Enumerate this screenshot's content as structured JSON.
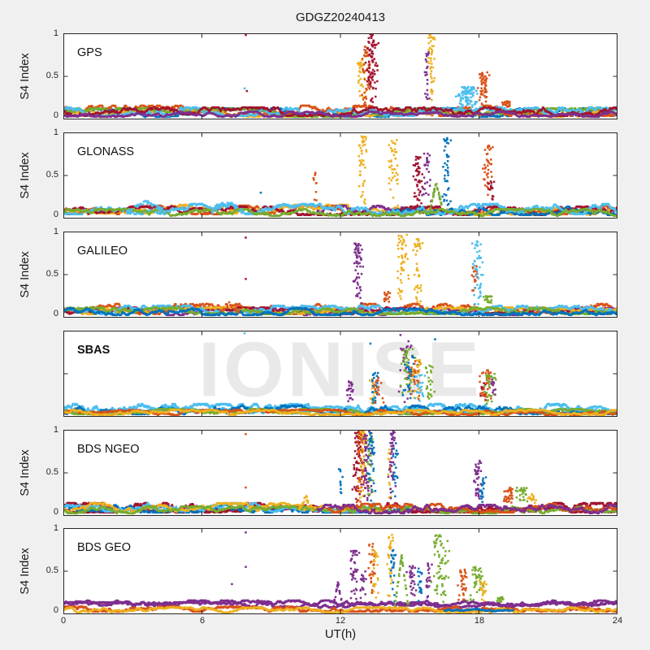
{
  "chart_data": {
    "type": "scatter",
    "title": "GDGZ20240413",
    "xlabel": "UT(h)",
    "ylabel": "S4 Index",
    "watermark": "IONISE",
    "xlim": [
      0,
      24
    ],
    "ylim": [
      0,
      1
    ],
    "xticks": [
      0,
      6,
      12,
      18,
      24
    ],
    "yticks": [
      0,
      0.5,
      1
    ],
    "grid": false,
    "marker": "square",
    "axis_color": "#262626",
    "panel_bg": "#ffffff",
    "figure_bg": "#f0f0f0",
    "palette": {
      "blue": "#0072BD",
      "orange": "#D95319",
      "yellow": "#EDB120",
      "purple": "#7E2F8E",
      "green": "#77AC30",
      "lightblue": "#4DBEEE",
      "darkred": "#A2142F"
    },
    "panels": [
      {
        "label": "GPS",
        "baseline": [
          {
            "c": "blue",
            "level": 0.08,
            "spread": 0.05
          },
          {
            "c": "orange",
            "level": 0.1,
            "spread": 0.06
          },
          {
            "c": "yellow",
            "level": 0.07,
            "spread": 0.04
          },
          {
            "c": "green",
            "level": 0.08,
            "spread": 0.05
          },
          {
            "c": "lightblue",
            "level": 0.09,
            "spread": 0.05
          },
          {
            "c": "darkred",
            "level": 0.09,
            "spread": 0.05
          },
          {
            "c": "purple",
            "level": 0.06,
            "spread": 0.03
          }
        ],
        "events": [
          {
            "t": 12.9,
            "w": 0.25,
            "peak": 0.72,
            "c": "yellow",
            "n": 30
          },
          {
            "t": 13.1,
            "w": 0.3,
            "peak": 0.9,
            "c": "orange",
            "n": 45
          },
          {
            "t": 13.35,
            "w": 0.35,
            "peak": 1.0,
            "c": "darkred",
            "n": 85
          },
          {
            "t": 15.75,
            "w": 0.18,
            "peak": 0.78,
            "c": "purple",
            "n": 22
          },
          {
            "t": 15.95,
            "w": 0.22,
            "peak": 1.0,
            "c": "yellow",
            "n": 45
          },
          {
            "t": 17.5,
            "w": 0.6,
            "peak": 0.38,
            "c": "lightblue",
            "n": 90
          },
          {
            "t": 18.15,
            "w": 0.35,
            "peak": 0.55,
            "c": "orange",
            "n": 55
          },
          {
            "t": 19.2,
            "w": 0.3,
            "peak": 0.22,
            "c": "orange",
            "n": 20
          }
        ],
        "outliers": [
          {
            "t": 7.9,
            "s4": 0.98,
            "c": "darkred"
          },
          {
            "t": 7.85,
            "s4": 0.36,
            "c": "lightblue"
          },
          {
            "t": 7.95,
            "s4": 0.33,
            "c": "darkred"
          }
        ]
      },
      {
        "label": "GLONASS",
        "baseline": [
          {
            "c": "orange",
            "level": 0.1,
            "spread": 0.05
          },
          {
            "c": "yellow",
            "level": 0.11,
            "spread": 0.05,
            "range": [
              0,
              13
            ]
          },
          {
            "c": "yellow",
            "level": 0.08,
            "spread": 0.04,
            "range": [
              13,
              24
            ]
          },
          {
            "c": "purple",
            "level": 0.1,
            "spread": 0.05,
            "range": [
              11,
              17
            ]
          },
          {
            "c": "darkred",
            "level": 0.09,
            "spread": 0.05
          },
          {
            "c": "blue",
            "level": 0.09,
            "spread": 0.05,
            "range": [
              14,
              24
            ]
          },
          {
            "c": "lightblue",
            "level": 0.11,
            "spread": 0.06
          },
          {
            "c": "green",
            "level": 0.07,
            "spread": 0.04
          }
        ],
        "events": [
          {
            "t": 3.6,
            "w": 0.9,
            "peak": 0.2,
            "c": "lightblue",
            "n": 50,
            "shape": "arc"
          },
          {
            "t": 7.1,
            "w": 0.7,
            "peak": 0.2,
            "c": "lightblue",
            "n": 35,
            "shape": "arc"
          },
          {
            "t": 10.9,
            "w": 0.12,
            "peak": 0.55,
            "c": "orange",
            "n": 10
          },
          {
            "t": 12.95,
            "w": 0.3,
            "peak": 0.97,
            "c": "yellow",
            "n": 45
          },
          {
            "t": 14.3,
            "w": 0.3,
            "peak": 0.93,
            "c": "yellow",
            "n": 40
          },
          {
            "t": 15.35,
            "w": 0.3,
            "peak": 0.72,
            "c": "darkred",
            "n": 45
          },
          {
            "t": 15.75,
            "w": 0.25,
            "peak": 0.78,
            "c": "purple",
            "n": 28
          },
          {
            "t": 16.15,
            "w": 0.3,
            "peak": 0.42,
            "c": "green",
            "n": 40,
            "shape": "arc"
          },
          {
            "t": 16.6,
            "w": 0.22,
            "peak": 0.95,
            "c": "blue",
            "n": 40
          },
          {
            "t": 18.35,
            "w": 0.3,
            "peak": 0.85,
            "c": "orange",
            "n": 40
          },
          {
            "t": 18.55,
            "w": 0.2,
            "peak": 0.45,
            "c": "darkred",
            "n": 15
          }
        ],
        "outliers": [
          {
            "t": 8.55,
            "s4": 0.3,
            "c": "blue"
          }
        ]
      },
      {
        "label": "GALILEO",
        "baseline": [
          {
            "c": "orange",
            "level": 0.1,
            "spread": 0.06
          },
          {
            "c": "purple",
            "level": 0.07,
            "spread": 0.04
          },
          {
            "c": "darkred",
            "level": 0.08,
            "spread": 0.04
          },
          {
            "c": "yellow",
            "level": 0.08,
            "spread": 0.04
          },
          {
            "c": "lightblue",
            "level": 0.09,
            "spread": 0.05
          },
          {
            "c": "green",
            "level": 0.08,
            "spread": 0.04
          },
          {
            "c": "blue",
            "level": 0.07,
            "spread": 0.04
          }
        ],
        "events": [
          {
            "t": 7.2,
            "w": 0.4,
            "peak": 0.17,
            "c": "orange",
            "n": 25,
            "shape": "arc"
          },
          {
            "t": 12.75,
            "w": 0.28,
            "peak": 0.88,
            "c": "purple",
            "n": 60
          },
          {
            "t": 14.0,
            "w": 0.2,
            "peak": 0.3,
            "c": "orange",
            "n": 15
          },
          {
            "t": 14.7,
            "w": 0.3,
            "peak": 0.97,
            "c": "yellow",
            "n": 50
          },
          {
            "t": 15.35,
            "w": 0.3,
            "peak": 0.92,
            "c": "yellow",
            "n": 40
          },
          {
            "t": 17.8,
            "w": 0.2,
            "peak": 0.6,
            "c": "orange",
            "n": 18
          },
          {
            "t": 17.95,
            "w": 0.28,
            "peak": 0.9,
            "c": "lightblue",
            "n": 45
          },
          {
            "t": 18.4,
            "w": 0.3,
            "peak": 0.25,
            "c": "green",
            "n": 22
          }
        ],
        "outliers": [
          {
            "t": 7.9,
            "s4": 0.93,
            "c": "darkred"
          },
          {
            "t": 7.9,
            "s4": 0.45,
            "c": "darkred"
          }
        ]
      },
      {
        "label": "SBAS",
        "baseline": [
          {
            "c": "lightblue",
            "level": 0.1,
            "spread": 0.05,
            "step": 0.02
          },
          {
            "c": "lightblue",
            "level": 0.08,
            "spread": 0.04
          },
          {
            "c": "blue",
            "level": 0.08,
            "spread": 0.05
          },
          {
            "c": "green",
            "level": 0.06,
            "spread": 0.03
          },
          {
            "c": "orange",
            "level": 0.05,
            "spread": 0.03
          },
          {
            "c": "yellow",
            "level": 0.05,
            "spread": 0.03
          }
        ],
        "events": [
          {
            "t": 12.4,
            "w": 0.25,
            "peak": 0.42,
            "c": "purple",
            "n": 22
          },
          {
            "t": 13.4,
            "w": 0.3,
            "peak": 0.45,
            "c": "yellow",
            "n": 15
          },
          {
            "t": 13.5,
            "w": 0.35,
            "peak": 0.52,
            "c": "blue",
            "n": 25
          },
          {
            "t": 13.6,
            "w": 0.3,
            "peak": 0.48,
            "c": "orange",
            "n": 18
          },
          {
            "t": 14.8,
            "w": 0.4,
            "peak": 0.88,
            "c": "purple",
            "n": 30
          },
          {
            "t": 14.9,
            "w": 0.45,
            "peak": 0.8,
            "c": "green",
            "n": 40
          },
          {
            "t": 15.0,
            "w": 0.4,
            "peak": 0.72,
            "c": "blue",
            "n": 30
          },
          {
            "t": 15.2,
            "w": 0.35,
            "peak": 0.65,
            "c": "orange",
            "n": 25
          },
          {
            "t": 15.3,
            "w": 0.35,
            "peak": 0.68,
            "c": "yellow",
            "n": 25
          },
          {
            "t": 15.5,
            "w": 0.3,
            "peak": 0.5,
            "c": "lightblue",
            "n": 20
          },
          {
            "t": 15.9,
            "w": 0.3,
            "peak": 0.6,
            "c": "green",
            "n": 25
          },
          {
            "t": 18.2,
            "w": 0.25,
            "peak": 0.4,
            "c": "darkred",
            "n": 12
          },
          {
            "t": 18.3,
            "w": 0.4,
            "peak": 0.55,
            "c": "orange",
            "n": 35
          },
          {
            "t": 18.45,
            "w": 0.35,
            "peak": 0.5,
            "c": "green",
            "n": 28
          },
          {
            "t": 18.6,
            "w": 0.2,
            "peak": 0.45,
            "c": "purple",
            "n": 10
          }
        ],
        "outliers": [
          {
            "t": 7.85,
            "s4": 0.97,
            "c": "lightblue"
          },
          {
            "t": 13.3,
            "s4": 0.85,
            "c": "blue"
          },
          {
            "t": 14.6,
            "s4": 0.95,
            "c": "purple"
          },
          {
            "t": 16.1,
            "s4": 0.9,
            "c": "blue"
          }
        ]
      },
      {
        "label": "BDS NGEO",
        "baseline": [
          {
            "c": "darkred",
            "level": 0.1,
            "spread": 0.05,
            "step": 0.02
          },
          {
            "c": "darkred",
            "level": 0.08,
            "spread": 0.04
          },
          {
            "c": "blue",
            "level": 0.09,
            "spread": 0.05,
            "range": [
              0,
              15
            ]
          },
          {
            "c": "lightblue",
            "level": 0.1,
            "spread": 0.05,
            "range": [
              0,
              13.5
            ]
          },
          {
            "c": "yellow",
            "level": 0.1,
            "spread": 0.05,
            "range": [
              0,
              14
            ]
          },
          {
            "c": "green",
            "level": 0.07,
            "spread": 0.04
          },
          {
            "c": "orange",
            "level": 0.09,
            "spread": 0.05,
            "range": [
              11.5,
              24
            ]
          },
          {
            "c": "purple",
            "level": 0.08,
            "spread": 0.05,
            "range": [
              11,
              24
            ]
          }
        ],
        "events": [
          {
            "t": 10.5,
            "w": 0.3,
            "peak": 0.22,
            "c": "yellow",
            "n": 20,
            "shape": "arc"
          },
          {
            "t": 12.0,
            "w": 0.12,
            "peak": 0.55,
            "c": "blue",
            "n": 10
          },
          {
            "t": 12.75,
            "w": 0.3,
            "peak": 1.0,
            "c": "darkred",
            "n": 70
          },
          {
            "t": 12.9,
            "w": 0.28,
            "peak": 1.0,
            "c": "orange",
            "n": 55
          },
          {
            "t": 13.0,
            "w": 0.25,
            "peak": 1.0,
            "c": "yellow",
            "n": 45
          },
          {
            "t": 13.15,
            "w": 0.3,
            "peak": 1.0,
            "c": "purple",
            "n": 55
          },
          {
            "t": 13.3,
            "w": 0.2,
            "peak": 0.95,
            "c": "green",
            "n": 25
          },
          {
            "t": 13.35,
            "w": 0.25,
            "peak": 1.0,
            "c": "blue",
            "n": 35
          },
          {
            "t": 14.15,
            "w": 0.15,
            "peak": 0.8,
            "c": "yellow",
            "n": 15
          },
          {
            "t": 14.25,
            "w": 0.22,
            "peak": 1.0,
            "c": "purple",
            "n": 45
          },
          {
            "t": 14.35,
            "w": 0.18,
            "peak": 0.85,
            "c": "blue",
            "n": 20
          },
          {
            "t": 17.95,
            "w": 0.25,
            "peak": 0.65,
            "c": "purple",
            "n": 40
          },
          {
            "t": 18.15,
            "w": 0.18,
            "peak": 0.45,
            "c": "blue",
            "n": 18
          },
          {
            "t": 19.3,
            "w": 0.35,
            "peak": 0.33,
            "c": "orange",
            "n": 35
          },
          {
            "t": 19.85,
            "w": 0.35,
            "peak": 0.33,
            "c": "green",
            "n": 28
          },
          {
            "t": 20.3,
            "w": 0.25,
            "peak": 0.28,
            "c": "yellow",
            "n": 15
          }
        ],
        "outliers": [
          {
            "t": 7.9,
            "s4": 0.95,
            "c": "orange"
          },
          {
            "t": 7.9,
            "s4": 0.33,
            "c": "orange"
          }
        ]
      },
      {
        "label": "BDS GEO",
        "baseline": [
          {
            "c": "purple",
            "level": 0.13,
            "spread": 0.03,
            "step": 0.02
          },
          {
            "c": "purple",
            "level": 0.11,
            "spread": 0.03,
            "step": 0.02
          },
          {
            "c": "orange",
            "level": 0.06,
            "spread": 0.03,
            "step": 0.02
          },
          {
            "c": "yellow",
            "level": 0.05,
            "spread": 0.03
          },
          {
            "c": "blue",
            "level": 0.04,
            "spread": 0.02,
            "range": [
              16.5,
              19.5
            ]
          }
        ],
        "events": [
          {
            "t": 11.9,
            "w": 0.22,
            "peak": 0.36,
            "c": "purple",
            "n": 28,
            "shape": "arc"
          },
          {
            "t": 12.6,
            "w": 0.25,
            "peak": 0.75,
            "c": "purple",
            "n": 40
          },
          {
            "t": 13.0,
            "w": 0.18,
            "peak": 0.5,
            "c": "purple",
            "n": 18
          },
          {
            "t": 13.35,
            "w": 0.22,
            "peak": 0.82,
            "c": "orange",
            "n": 30
          },
          {
            "t": 13.5,
            "w": 0.18,
            "peak": 0.78,
            "c": "yellow",
            "n": 25
          },
          {
            "t": 14.15,
            "w": 0.18,
            "peak": 0.95,
            "c": "yellow",
            "n": 28
          },
          {
            "t": 14.3,
            "w": 0.18,
            "peak": 0.75,
            "c": "blue",
            "n": 22
          },
          {
            "t": 14.65,
            "w": 0.3,
            "peak": 0.68,
            "c": "green",
            "n": 40,
            "shape": "arc"
          },
          {
            "t": 15.1,
            "w": 0.25,
            "peak": 0.62,
            "c": "purple",
            "n": 30
          },
          {
            "t": 15.45,
            "w": 0.18,
            "peak": 0.55,
            "c": "blue",
            "n": 18
          },
          {
            "t": 15.8,
            "w": 0.2,
            "peak": 0.6,
            "c": "purple",
            "n": 20
          },
          {
            "t": 16.3,
            "w": 0.45,
            "peak": 0.92,
            "c": "green",
            "n": 65
          },
          {
            "t": 17.3,
            "w": 0.35,
            "peak": 0.52,
            "c": "orange",
            "n": 30
          },
          {
            "t": 17.9,
            "w": 0.45,
            "peak": 0.55,
            "c": "green",
            "n": 40
          },
          {
            "t": 18.15,
            "w": 0.25,
            "peak": 0.4,
            "c": "yellow",
            "n": 20
          },
          {
            "t": 19.0,
            "w": 0.3,
            "peak": 0.2,
            "c": "green",
            "n": 15
          }
        ],
        "outliers": [
          {
            "t": 7.9,
            "s4": 0.95,
            "c": "purple"
          },
          {
            "t": 7.9,
            "s4": 0.55,
            "c": "purple"
          },
          {
            "t": 7.3,
            "s4": 0.35,
            "c": "purple"
          }
        ]
      }
    ]
  }
}
